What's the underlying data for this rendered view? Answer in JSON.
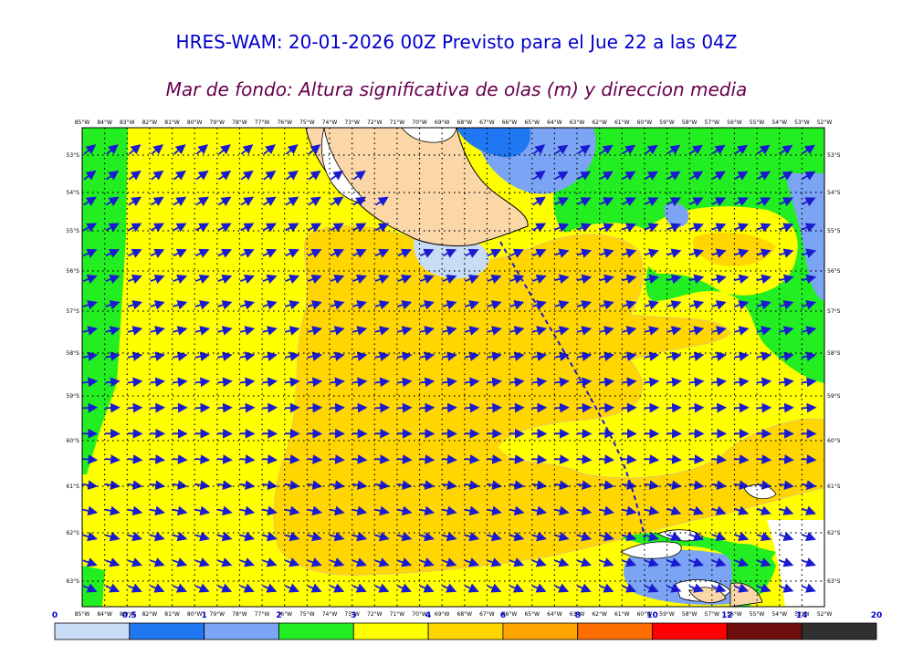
{
  "header": {
    "title": "HRES-WAM: 20-01-2026 00Z Previsto para el Jue 22 a las 04Z",
    "subtitle": "Mar de fondo: Altura significativa de olas (m) y direccion media"
  },
  "map": {
    "lon_labels": [
      "85°W",
      "84°W",
      "83°W",
      "82°W",
      "81°W",
      "80°W",
      "79°W",
      "78°W",
      "77°W",
      "76°W",
      "75°W",
      "74°W",
      "73°W",
      "72°W",
      "71°W",
      "70°W",
      "69°W",
      "68°W",
      "67°W",
      "66°W",
      "65°W",
      "64°W",
      "63°W",
      "62°W",
      "61°W",
      "60°W",
      "59°W",
      "58°W",
      "57°W",
      "56°W",
      "55°W",
      "54°W",
      "53°W",
      "52°W"
    ],
    "lat_labels": [
      "53°S",
      "54°S",
      "55°S",
      "56°S",
      "57°S",
      "58°S",
      "59°S",
      "60°S",
      "61°S",
      "62°S",
      "63°S"
    ],
    "colors": {
      "land": "#fbd7a8",
      "arrow": "#1a1ad0"
    }
  },
  "colorbar": {
    "labels": [
      "0",
      "0.5",
      "1",
      "2",
      "3",
      "4",
      "6",
      "8",
      "10",
      "12",
      "14",
      "20"
    ],
    "colors": [
      "#c8dcf5",
      "#1f78f2",
      "#7ba4f5",
      "#22ee22",
      "#ffff00",
      "#ffd600",
      "#ffa500",
      "#ff6e00",
      "#ff0000",
      "#6d0d0d",
      "#303030"
    ]
  }
}
